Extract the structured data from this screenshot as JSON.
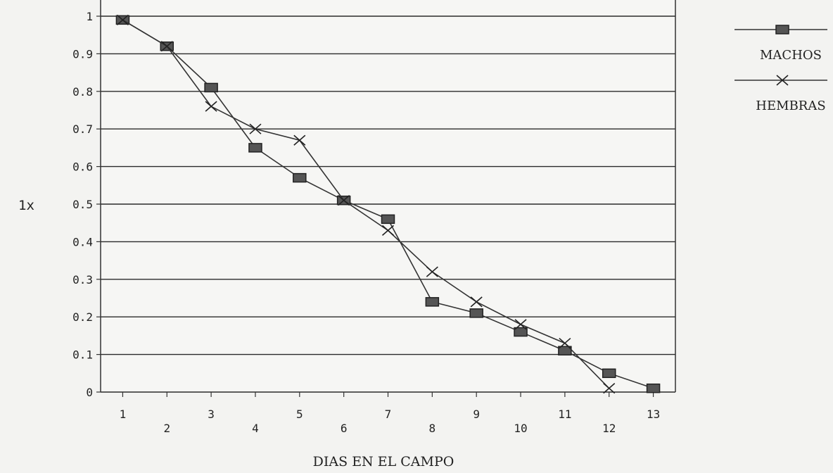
{
  "chart_data": {
    "type": "line",
    "title": "",
    "xlabel": "DIAS EN EL CAMPO",
    "ylabel": "1x",
    "x": [
      1,
      2,
      3,
      4,
      5,
      6,
      7,
      8,
      9,
      10,
      11,
      12,
      13
    ],
    "xlim": [
      0.5,
      13.5
    ],
    "ylim": [
      0,
      1
    ],
    "y_ticks": [
      "0",
      "0.1",
      "0.2",
      "0.3",
      "0.4",
      "0.5",
      "0.6",
      "0.7",
      "0.8",
      "0.9",
      "1"
    ],
    "x_tick_labels": [
      "1",
      "2",
      "3",
      "4",
      "5",
      "6",
      "7",
      "8",
      "9",
      "10",
      "11",
      "12",
      "13"
    ],
    "grid": true,
    "legend_position": "top-right",
    "series": [
      {
        "name": "MACHOS",
        "marker": "square",
        "color": "#333333",
        "points": [
          [
            1,
            0.99
          ],
          [
            2,
            0.92
          ],
          [
            3,
            0.81
          ],
          [
            4,
            0.65
          ],
          [
            5,
            0.57
          ],
          [
            6,
            0.51
          ],
          [
            7,
            0.46
          ],
          [
            8,
            0.24
          ],
          [
            9,
            0.21
          ],
          [
            10,
            0.16
          ],
          [
            11,
            0.11
          ],
          [
            12,
            0.05
          ],
          [
            13,
            0.01
          ]
        ]
      },
      {
        "name": "HEMBRAS",
        "marker": "x",
        "color": "#333333",
        "points": [
          [
            1,
            0.99
          ],
          [
            2,
            0.92
          ],
          [
            3,
            0.76
          ],
          [
            4,
            0.7
          ],
          [
            5,
            0.67
          ],
          [
            6,
            0.51
          ],
          [
            7,
            0.43
          ],
          [
            8,
            0.32
          ],
          [
            9,
            0.24
          ],
          [
            10,
            0.18
          ],
          [
            11,
            0.13
          ],
          [
            12,
            0.01
          ]
        ]
      }
    ]
  }
}
